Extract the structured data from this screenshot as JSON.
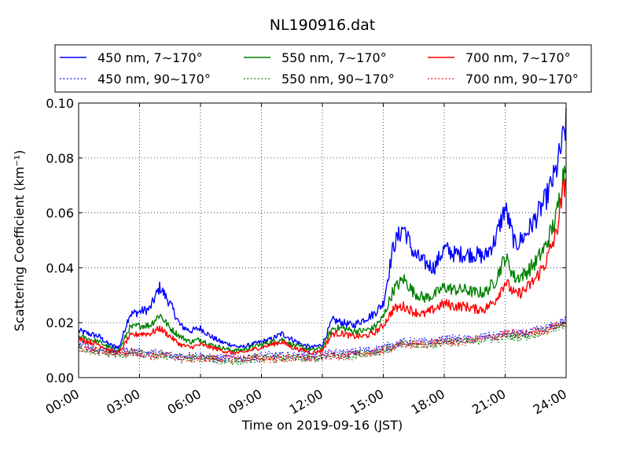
{
  "chart_data": {
    "type": "line",
    "title": "NL190916.dat",
    "xlabel": "Time on 2019-09-16 (JST)",
    "ylabel": "Scattering Coefficient (km⁻¹)",
    "xlim": [
      0,
      24
    ],
    "ylim": [
      0.0,
      0.1
    ],
    "x_ticks": [
      "00:00",
      "03:00",
      "06:00",
      "09:00",
      "12:00",
      "15:00",
      "18:00",
      "21:00",
      "24:00"
    ],
    "y_ticks": [
      "0.00",
      "0.02",
      "0.04",
      "0.06",
      "0.08",
      "0.10"
    ],
    "grid": true,
    "legend_position": "top",
    "x_hours": [
      0,
      0.5,
      1,
      1.5,
      2,
      2.5,
      3,
      3.5,
      4,
      4.5,
      5,
      5.5,
      6,
      6.5,
      7,
      7.5,
      8,
      8.5,
      9,
      9.5,
      10,
      10.5,
      11,
      11.5,
      12,
      12.5,
      13,
      13.5,
      14,
      14.5,
      15,
      15.5,
      16,
      16.5,
      17,
      17.5,
      18,
      18.5,
      19,
      19.5,
      20,
      20.5,
      21,
      21.5,
      22,
      22.5,
      23,
      23.5,
      24
    ],
    "series": [
      {
        "name": "450 nm, 7∼170°",
        "color": "#0000ff",
        "style": "solid",
        "values": [
          0.017,
          0.016,
          0.015,
          0.012,
          0.011,
          0.023,
          0.024,
          0.025,
          0.033,
          0.027,
          0.019,
          0.017,
          0.018,
          0.015,
          0.013,
          0.012,
          0.011,
          0.012,
          0.013,
          0.014,
          0.016,
          0.014,
          0.012,
          0.011,
          0.012,
          0.021,
          0.02,
          0.019,
          0.021,
          0.023,
          0.027,
          0.048,
          0.055,
          0.045,
          0.042,
          0.04,
          0.047,
          0.045,
          0.045,
          0.045,
          0.044,
          0.05,
          0.062,
          0.048,
          0.052,
          0.058,
          0.065,
          0.075,
          0.092
        ]
      },
      {
        "name": "550 nm, 7∼170°",
        "color": "#008000",
        "style": "solid",
        "values": [
          0.015,
          0.014,
          0.013,
          0.011,
          0.01,
          0.018,
          0.019,
          0.019,
          0.023,
          0.018,
          0.015,
          0.013,
          0.014,
          0.012,
          0.011,
          0.01,
          0.01,
          0.011,
          0.012,
          0.013,
          0.014,
          0.012,
          0.011,
          0.01,
          0.011,
          0.018,
          0.018,
          0.017,
          0.017,
          0.018,
          0.022,
          0.032,
          0.036,
          0.031,
          0.029,
          0.03,
          0.033,
          0.032,
          0.032,
          0.031,
          0.031,
          0.035,
          0.044,
          0.036,
          0.038,
          0.042,
          0.048,
          0.058,
          0.08
        ]
      },
      {
        "name": "700 nm, 7∼170°",
        "color": "#ff0000",
        "style": "solid",
        "values": [
          0.014,
          0.013,
          0.012,
          0.01,
          0.009,
          0.015,
          0.016,
          0.016,
          0.018,
          0.015,
          0.012,
          0.011,
          0.012,
          0.011,
          0.01,
          0.009,
          0.009,
          0.01,
          0.011,
          0.012,
          0.013,
          0.011,
          0.01,
          0.009,
          0.01,
          0.016,
          0.016,
          0.015,
          0.015,
          0.016,
          0.019,
          0.025,
          0.026,
          0.024,
          0.023,
          0.025,
          0.027,
          0.026,
          0.026,
          0.025,
          0.025,
          0.028,
          0.035,
          0.03,
          0.032,
          0.036,
          0.042,
          0.052,
          0.074
        ]
      },
      {
        "name": "450 nm, 90∼170°",
        "color": "#0000ff",
        "style": "dotted",
        "values": [
          0.012,
          0.011,
          0.01,
          0.01,
          0.009,
          0.01,
          0.009,
          0.009,
          0.009,
          0.008,
          0.008,
          0.008,
          0.008,
          0.007,
          0.007,
          0.007,
          0.007,
          0.007,
          0.008,
          0.008,
          0.008,
          0.008,
          0.008,
          0.008,
          0.008,
          0.009,
          0.009,
          0.009,
          0.01,
          0.01,
          0.011,
          0.012,
          0.013,
          0.013,
          0.013,
          0.013,
          0.014,
          0.014,
          0.014,
          0.014,
          0.015,
          0.015,
          0.016,
          0.016,
          0.016,
          0.017,
          0.018,
          0.019,
          0.021
        ]
      },
      {
        "name": "550 nm, 90∼170°",
        "color": "#008000",
        "style": "dotted",
        "values": [
          0.011,
          0.01,
          0.009,
          0.009,
          0.008,
          0.009,
          0.009,
          0.008,
          0.008,
          0.008,
          0.007,
          0.007,
          0.007,
          0.007,
          0.006,
          0.006,
          0.006,
          0.007,
          0.007,
          0.007,
          0.007,
          0.007,
          0.007,
          0.007,
          0.007,
          0.008,
          0.008,
          0.008,
          0.009,
          0.009,
          0.01,
          0.011,
          0.012,
          0.012,
          0.012,
          0.012,
          0.013,
          0.013,
          0.013,
          0.013,
          0.014,
          0.014,
          0.015,
          0.015,
          0.015,
          0.016,
          0.017,
          0.018,
          0.019
        ]
      },
      {
        "name": "700 nm, 90∼170°",
        "color": "#ff0000",
        "style": "dotted",
        "values": [
          0.011,
          0.01,
          0.01,
          0.009,
          0.009,
          0.009,
          0.009,
          0.008,
          0.008,
          0.008,
          0.007,
          0.007,
          0.007,
          0.007,
          0.007,
          0.007,
          0.007,
          0.007,
          0.007,
          0.007,
          0.007,
          0.007,
          0.007,
          0.007,
          0.008,
          0.008,
          0.008,
          0.008,
          0.009,
          0.009,
          0.01,
          0.011,
          0.012,
          0.012,
          0.012,
          0.013,
          0.013,
          0.013,
          0.013,
          0.014,
          0.014,
          0.015,
          0.016,
          0.016,
          0.016,
          0.017,
          0.017,
          0.019,
          0.02
        ]
      }
    ]
  }
}
